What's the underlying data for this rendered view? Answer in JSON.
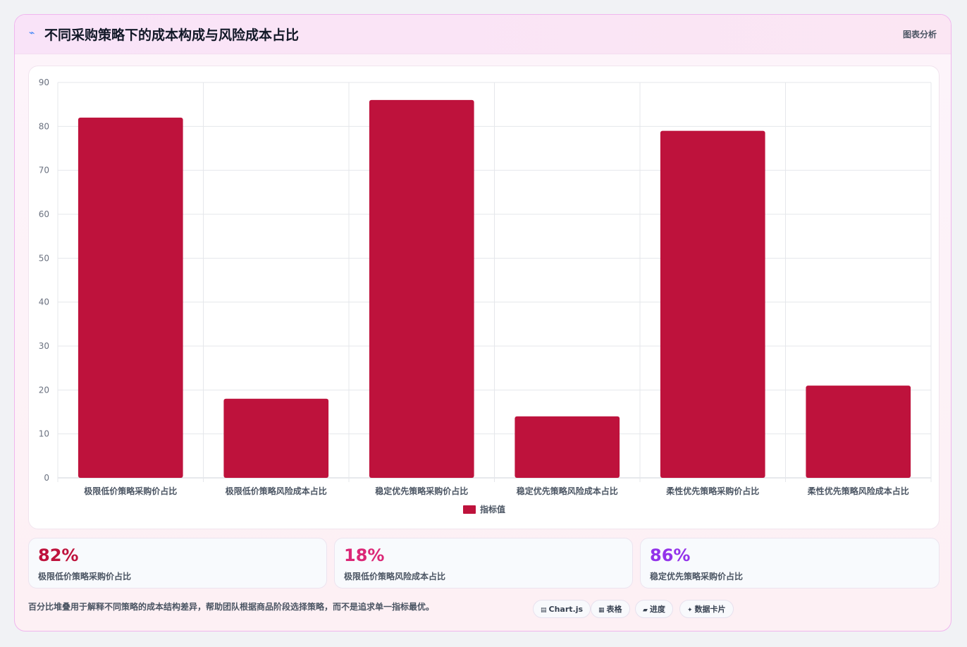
{
  "header": {
    "icon": "sparkline-icon",
    "title": "不同采购策略下的成本构成与风险成本占比",
    "right_label": "图表分析"
  },
  "chart_data": {
    "type": "bar",
    "categories": [
      "极限低价策略采购价占比",
      "极限低价策略风险成本占比",
      "稳定优先策略采购价占比",
      "稳定优先策略风险成本占比",
      "柔性优先策略采购价占比",
      "柔性优先策略风险成本占比"
    ],
    "series": [
      {
        "name": "指标值",
        "values": [
          82,
          18,
          86,
          14,
          79,
          21
        ],
        "color": "#be123c"
      }
    ],
    "ylim": [
      0,
      90
    ],
    "yticks": [
      0,
      10,
      20,
      30,
      40,
      50,
      60,
      70,
      80,
      90
    ],
    "grid": true,
    "legend": "bottom"
  },
  "stats": [
    {
      "value": "82%",
      "label": "极限低价策略采购价占比",
      "color": "#be123c"
    },
    {
      "value": "18%",
      "label": "极限低价策略风险成本占比",
      "color": "#db2777"
    },
    {
      "value": "86%",
      "label": "稳定优先策略采购价占比",
      "color": "#9333ea"
    }
  ],
  "footer": {
    "text": "百分比堆叠用于解释不同策略的成本结构差异，帮助团队根据商品阶段选择策略，而不是追求单一指标最优。",
    "chips": [
      {
        "icon": "chart-icon",
        "glyph": "▤",
        "label": "Chart.js"
      },
      {
        "icon": "table-icon",
        "glyph": "▦",
        "label": "表格"
      },
      {
        "icon": "progress-icon",
        "glyph": "▰",
        "label": "进度"
      },
      {
        "icon": "sparkle-icon",
        "glyph": "✦",
        "label": "数据卡片"
      }
    ]
  }
}
